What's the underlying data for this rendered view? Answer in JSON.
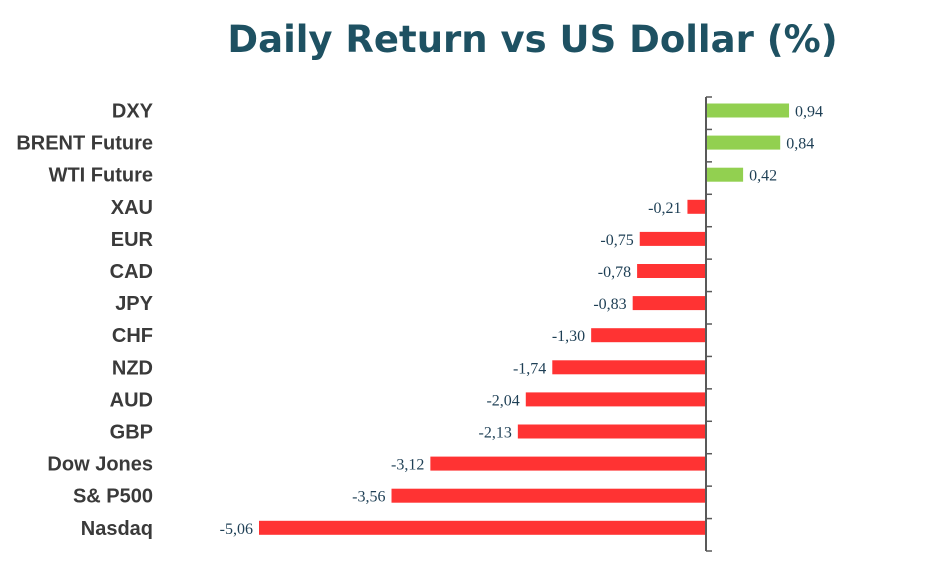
{
  "chart_data": {
    "type": "bar",
    "orientation": "horizontal",
    "title": "Daily Return vs US Dollar (%)",
    "categories": [
      "DXY",
      "BRENT Future",
      "WTI Future",
      "XAU",
      "EUR",
      "CAD",
      "JPY",
      "CHF",
      "NZD",
      "AUD",
      "GBP",
      "Dow Jones",
      "S& P500",
      "Nasdaq"
    ],
    "values": [
      0.94,
      0.84,
      0.42,
      -0.21,
      -0.75,
      -0.78,
      -0.83,
      -1.3,
      -1.74,
      -2.04,
      -2.13,
      -3.12,
      -3.56,
      -5.06
    ],
    "value_labels": [
      "0,94",
      "0,84",
      "0,42",
      "-0,21",
      "-0,75",
      "-0,78",
      "-0,83",
      "-1,30",
      "-1,74",
      "-2,04",
      "-2,13",
      "-3,12",
      "-3,56",
      "-5,06"
    ],
    "xlim": [
      -5.06,
      0.94
    ],
    "grid": false,
    "colors": {
      "positive": "#92d050",
      "negative": "#ff3333",
      "axis": "#595959"
    }
  }
}
